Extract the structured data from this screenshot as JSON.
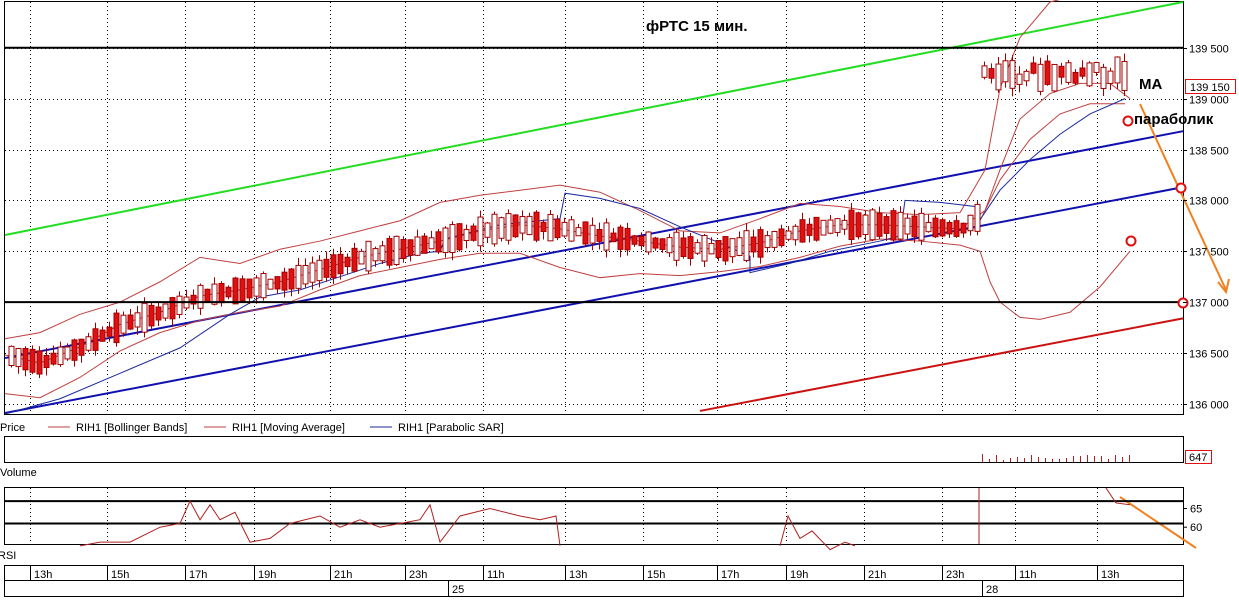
{
  "chart_data": [
    {
      "type": "candlestick",
      "panel": "price",
      "title": "фРТС   15 мин.",
      "current_price_label": "139 150",
      "y_ticks": [
        {
          "value": 136000,
          "label": "136 000"
        },
        {
          "value": 136500,
          "label": "136 500"
        },
        {
          "value": 137000,
          "label": "137 000"
        },
        {
          "value": 137500,
          "label": "137 500"
        },
        {
          "value": 138000,
          "label": "138 000"
        },
        {
          "value": 138500,
          "label": "138 500"
        },
        {
          "value": 139000,
          "label": "139 000"
        },
        {
          "value": 139500,
          "label": "139 500"
        }
      ],
      "ylim": [
        135900,
        139950
      ],
      "horizontal_levels": [
        139500,
        137000
      ],
      "legend": [
        {
          "label": "Price",
          "color": "#000000"
        },
        {
          "label": "RIH1 [Bollinger Bands]",
          "color": "#c0392b"
        },
        {
          "label": "RIH1 [Moving Average]",
          "color": "#c0392b"
        },
        {
          "label": "RIH1 [Parabolic SAR]",
          "color": "#1a2a9a"
        }
      ],
      "annotations": [
        {
          "text": "MA"
        },
        {
          "text": "параболик"
        }
      ],
      "grid": true,
      "colors": {
        "up_candle": "#ffffff",
        "down_candle": "#e01010",
        "wick": "#a00000",
        "bollinger": "#c04040",
        "moving_average": "#c04040",
        "sar": "#1a2aa0",
        "trend_blue": "#1010b0",
        "trend_green": "#22dd22",
        "trend_red": "#cc1111",
        "forecast": "#f08020"
      }
    },
    {
      "type": "bar",
      "panel": "volume",
      "label": "Volume",
      "last_value": "647"
    },
    {
      "type": "line",
      "panel": "rsi",
      "label": "RSI",
      "y_ticks": [
        {
          "value": 65,
          "label": "65"
        },
        {
          "value": 60,
          "label": "60"
        }
      ],
      "levels": [
        67,
        61
      ]
    }
  ],
  "x_axis": {
    "time_labels": [
      "13h",
      "15h",
      "17h",
      "19h",
      "21h",
      "23h",
      "11h",
      "13h",
      "15h",
      "17h",
      "19h",
      "21h",
      "23h",
      "11h",
      "13h"
    ],
    "date_labels": [
      "25",
      "28"
    ]
  }
}
